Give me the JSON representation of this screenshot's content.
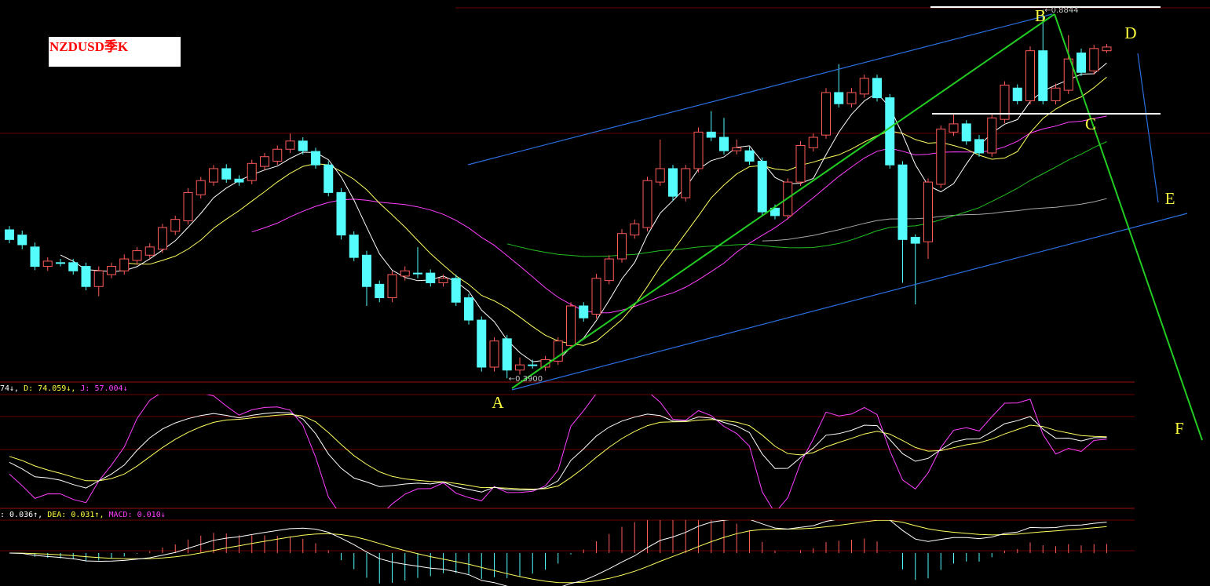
{
  "chart_data": {
    "type": "candlestick",
    "title": "NZDUSD季K",
    "ylim": [
      0.385,
      0.897
    ],
    "open": [
      0.589,
      0.582,
      0.566,
      0.54,
      0.545,
      0.545,
      0.54,
      0.513,
      0.529,
      0.534,
      0.548,
      0.555,
      0.563,
      0.587,
      0.601,
      0.636,
      0.653,
      0.671,
      0.657,
      0.655,
      0.674,
      0.681,
      0.697,
      0.708,
      0.694,
      0.676,
      0.639,
      0.582,
      0.555,
      0.516,
      0.498,
      0.527,
      0.531,
      0.531,
      0.518,
      0.524,
      0.498,
      0.468,
      0.405,
      0.443,
      0.401,
      0.408,
      0.405,
      0.413,
      0.434,
      0.487,
      0.476,
      0.521,
      0.55,
      0.582,
      0.592,
      0.653,
      0.671,
      0.632,
      0.671,
      0.72,
      0.713,
      0.695,
      0.695,
      0.681,
      0.618,
      0.608,
      0.653,
      0.699,
      0.716,
      0.773,
      0.758,
      0.771,
      0.792,
      0.766,
      0.676,
      0.579,
      0.573,
      0.65,
      0.72,
      0.731,
      0.71,
      0.692,
      0.737,
      0.779,
      0.762,
      0.829,
      0.762,
      0.776,
      0.826,
      0.802,
      0.829
    ],
    "high": [
      0.594,
      0.588,
      0.572,
      0.552,
      0.55,
      0.55,
      0.545,
      0.54,
      0.545,
      0.556,
      0.566,
      0.571,
      0.597,
      0.608,
      0.645,
      0.66,
      0.676,
      0.677,
      0.662,
      0.683,
      0.692,
      0.702,
      0.718,
      0.713,
      0.699,
      0.681,
      0.645,
      0.587,
      0.561,
      0.521,
      0.534,
      0.54,
      0.566,
      0.536,
      0.529,
      0.529,
      0.503,
      0.473,
      0.445,
      0.448,
      0.418,
      0.415,
      0.42,
      0.445,
      0.492,
      0.492,
      0.53,
      0.555,
      0.59,
      0.603,
      0.66,
      0.71,
      0.676,
      0.676,
      0.726,
      0.748,
      0.739,
      0.71,
      0.7,
      0.686,
      0.623,
      0.658,
      0.708,
      0.718,
      0.779,
      0.811,
      0.779,
      0.797,
      0.797,
      0.771,
      0.681,
      0.583,
      0.658,
      0.729,
      0.744,
      0.736,
      0.716,
      0.744,
      0.788,
      0.784,
      0.835,
      0.884,
      0.785,
      0.85,
      0.832,
      0.837,
      0.838
    ],
    "low": [
      0.571,
      0.563,
      0.535,
      0.534,
      0.54,
      0.529,
      0.508,
      0.5,
      0.524,
      0.529,
      0.542,
      0.55,
      0.558,
      0.582,
      0.596,
      0.631,
      0.648,
      0.652,
      0.648,
      0.65,
      0.669,
      0.676,
      0.692,
      0.69,
      0.671,
      0.634,
      0.576,
      0.547,
      0.487,
      0.492,
      0.492,
      0.521,
      0.524,
      0.513,
      0.513,
      0.487,
      0.462,
      0.399,
      0.399,
      0.39,
      0.395,
      0.403,
      0.4,
      0.408,
      0.429,
      0.466,
      0.47,
      0.516,
      0.545,
      0.577,
      0.587,
      0.648,
      0.628,
      0.627,
      0.666,
      0.708,
      0.69,
      0.69,
      0.676,
      0.608,
      0.603,
      0.603,
      0.648,
      0.694,
      0.711,
      0.753,
      0.753,
      0.766,
      0.761,
      0.671,
      0.518,
      0.489,
      0.55,
      0.645,
      0.715,
      0.703,
      0.687,
      0.687,
      0.732,
      0.757,
      0.757,
      0.757,
      0.757,
      0.771,
      0.795,
      0.797,
      0.826
    ],
    "close": [
      0.576,
      0.569,
      0.54,
      0.547,
      0.544,
      0.534,
      0.513,
      0.534,
      0.54,
      0.55,
      0.561,
      0.566,
      0.592,
      0.603,
      0.639,
      0.655,
      0.671,
      0.657,
      0.653,
      0.678,
      0.687,
      0.697,
      0.708,
      0.695,
      0.676,
      0.639,
      0.582,
      0.552,
      0.513,
      0.498,
      0.529,
      0.534,
      0.53,
      0.518,
      0.524,
      0.492,
      0.468,
      0.405,
      0.44,
      0.401,
      0.408,
      0.407,
      0.415,
      0.44,
      0.487,
      0.471,
      0.524,
      0.55,
      0.584,
      0.597,
      0.655,
      0.671,
      0.634,
      0.671,
      0.72,
      0.713,
      0.695,
      0.699,
      0.681,
      0.613,
      0.608,
      0.653,
      0.702,
      0.713,
      0.773,
      0.758,
      0.773,
      0.792,
      0.766,
      0.676,
      0.576,
      0.571,
      0.653,
      0.724,
      0.731,
      0.708,
      0.692,
      0.739,
      0.783,
      0.762,
      0.829,
      0.762,
      0.779,
      0.818,
      0.8,
      0.832,
      0.834
    ],
    "price_labels": [
      {
        "value": 0.39,
        "label": "←0.3900"
      },
      {
        "value": 0.8844,
        "label": "←0.8844"
      }
    ],
    "annotations": [
      "A",
      "B",
      "C",
      "D",
      "E",
      "F"
    ],
    "kdj_labels": [
      "74↓,",
      "D: 74.059↓,",
      "J: 57.004↓"
    ],
    "macd_labels": [
      ": 0.036↑,",
      "DEA: 0.031↑,",
      "MACD: 0.010↓"
    ]
  }
}
